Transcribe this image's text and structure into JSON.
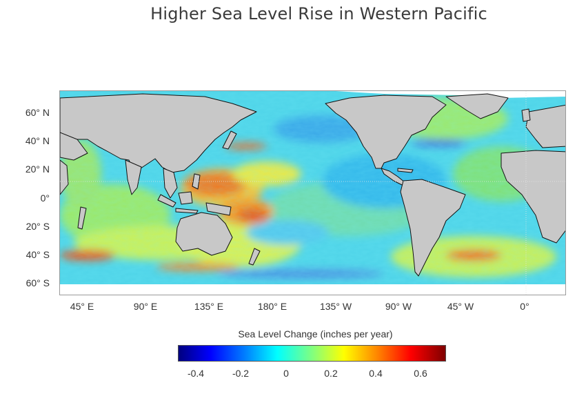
{
  "title": "Higher Sea Level Rise in Western Pacific",
  "map": {
    "projection": "equirectangular",
    "lon_labels": [
      "45° E",
      "90° E",
      "135° E",
      "180° E",
      "135° W",
      "90° W",
      "45° W",
      "0°"
    ],
    "lat_labels": [
      "60° N",
      "40° N",
      "20° N",
      "0°",
      "20° S",
      "40° S",
      "60° S"
    ],
    "land_color": "#c8c8c8",
    "coastline_color": "#111111",
    "ice_color": "#ffffff",
    "highlight_region": "Western Pacific"
  },
  "colorbar": {
    "title": "Sea Level Change (inches per year)",
    "ticks": [
      "-0.4",
      "-0.2",
      "0",
      "0.2",
      "0.4",
      "0.6"
    ],
    "min": -0.5,
    "max": 0.7,
    "colormap": "jet"
  }
}
